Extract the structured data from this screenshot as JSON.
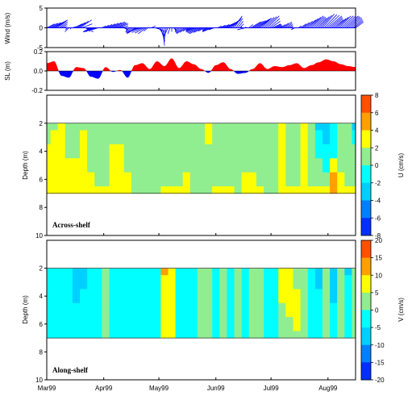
{
  "chart_data": [
    {
      "type": "line",
      "subtype": "stick-vector",
      "ylabel": "Wind (m/s)",
      "ylim": [
        -5,
        5
      ],
      "yticks": [
        -5,
        0,
        5
      ],
      "color": "#0000ff",
      "x_start": "1999-03-01",
      "days": [
        0,
        3,
        6,
        9,
        12,
        15,
        18,
        21,
        24,
        27,
        30,
        33,
        36,
        39,
        42,
        45,
        48,
        51,
        54,
        57,
        60,
        63,
        66,
        69,
        72,
        75,
        78,
        81,
        84,
        87,
        90,
        93,
        96,
        99,
        102,
        105,
        108,
        111,
        114,
        117,
        120,
        123,
        126,
        129,
        132,
        135,
        138,
        141,
        144,
        147,
        150,
        153,
        156,
        159,
        162,
        165,
        168
      ],
      "u": [
        2,
        3,
        2.5,
        1,
        -1,
        2,
        3,
        2,
        -2,
        -3,
        1,
        2,
        3,
        2.5,
        1,
        -1,
        -2,
        -3,
        -2,
        1,
        2,
        0.5,
        -1,
        0.5,
        -1,
        -2,
        -1,
        -2.5,
        -3,
        -1,
        -2.5,
        1,
        2.5,
        3,
        2,
        1,
        -2,
        2.5,
        3,
        2.5,
        3,
        2,
        1,
        2,
        1,
        -1,
        1.5,
        2.5,
        3,
        2.5,
        3,
        3.5,
        2.5,
        3,
        3.5,
        3,
        2
      ],
      "v": [
        1,
        1.5,
        2,
        0.5,
        -1,
        1,
        2,
        -1,
        -1,
        -1,
        0.5,
        1,
        1.5,
        1,
        -0.5,
        -1,
        -1.5,
        -1,
        -1.5,
        0.5,
        -1,
        -4.5,
        -2,
        -0.5,
        -1,
        -1.5,
        -0.5,
        -1,
        -1.5,
        -0.5,
        -1,
        0.5,
        1,
        2,
        3,
        1,
        -0.5,
        1.5,
        2,
        2.5,
        3,
        1,
        0.5,
        1.5,
        0.5,
        -0.5,
        1,
        2,
        3,
        2.5,
        3.5,
        3,
        2,
        3,
        3,
        2.5,
        1.5
      ]
    },
    {
      "type": "area",
      "ylabel": "SL (m)",
      "ylim": [
        -0.2,
        0.2
      ],
      "yticks": [
        -0.2,
        0.0,
        0.2
      ],
      "positive_color": "#ff0000",
      "negative_color": "#0000ff",
      "x_start": "1999-03-01",
      "days": [
        0,
        4,
        8,
        12,
        16,
        20,
        24,
        28,
        32,
        36,
        40,
        44,
        48,
        52,
        56,
        60,
        64,
        68,
        72,
        76,
        80,
        84,
        88,
        92,
        96,
        100,
        104,
        108,
        112,
        116,
        120,
        124,
        128,
        132,
        136,
        140,
        144,
        148,
        152,
        156,
        160,
        164,
        168
      ],
      "values": [
        0.08,
        0.1,
        -0.05,
        -0.07,
        0.04,
        0.03,
        -0.06,
        -0.08,
        0.04,
        -0.01,
        0.01,
        -0.07,
        0.06,
        0.08,
        0.02,
        0.1,
        0.05,
        0.13,
        0.03,
        0.1,
        0.07,
        0.02,
        -0.02,
        0.06,
        0.09,
        0.02,
        -0.03,
        -0.02,
        0.02,
        0.08,
        0.02,
        0.05,
        0.04,
        0.06,
        0.08,
        0.03,
        0.06,
        0.09,
        0.12,
        0.1,
        0.07,
        0.05,
        0.04
      ]
    },
    {
      "type": "heatmap",
      "panel_label": "Across-shelf",
      "ylabel": "Depth (m)",
      "colorbar_label": "U (cm/s)",
      "ylim": [
        10,
        0
      ],
      "yticks": [
        2,
        4,
        6,
        8,
        10
      ],
      "colorbar_ticks": [
        -8,
        -6,
        -4,
        -2,
        0,
        2,
        4,
        6,
        8
      ],
      "levels": [
        -8,
        -6,
        -4,
        -2,
        0,
        2,
        4,
        6,
        8
      ],
      "level_colors": [
        "#00008f",
        "#0000df",
        "#0030ff",
        "#0080ff",
        "#00d0ff",
        "#00ffff",
        "#90ee90",
        "#ffff00",
        "#ffa000",
        "#ff5000",
        "#ff0000"
      ],
      "depths": [
        2,
        3,
        4,
        5,
        6,
        7
      ],
      "x_start": "1999-03-01",
      "days": [
        0,
        4,
        8,
        12,
        16,
        20,
        24,
        28,
        32,
        36,
        40,
        44,
        48,
        52,
        56,
        60,
        64,
        68,
        72,
        76,
        80,
        84,
        88,
        92,
        96,
        100,
        104,
        108,
        112,
        116,
        120,
        124,
        128,
        132,
        136,
        140,
        144,
        148,
        152,
        156,
        160,
        164,
        168
      ],
      "values": [
        [
          0.5,
          1,
          2.5,
          0.5,
          1,
          0.5,
          0.5,
          0.5,
          0.5,
          0.5,
          1,
          0.5,
          0.5,
          0.5,
          0.5,
          0.5,
          0.5,
          0.5,
          0.5,
          0.5,
          0.5,
          0.5,
          2.5,
          0.5,
          0.5,
          0.5,
          0.5,
          1,
          1,
          0.5,
          0.5,
          0.5,
          2.5,
          0.5,
          0.5,
          2.5,
          0.5,
          -3,
          -2.5,
          -1,
          0.5,
          0.5,
          -3
        ],
        [
          0.5,
          2.5,
          2.5,
          0.5,
          1,
          2.5,
          0.5,
          0.5,
          0.5,
          0.5,
          1,
          0.5,
          0.5,
          0.5,
          0.5,
          0.5,
          0.5,
          0.5,
          0.5,
          0.5,
          0.5,
          0.5,
          2.5,
          0.5,
          0.5,
          0.5,
          0.5,
          1,
          1,
          0.5,
          0.5,
          0.5,
          2.5,
          0.5,
          0.5,
          2.5,
          0.5,
          -1,
          -3,
          -1,
          0.5,
          0.5,
          -1
        ],
        [
          2.5,
          2.5,
          2.5,
          1,
          1,
          2.5,
          0.5,
          0.5,
          0.5,
          2.5,
          2.5,
          0.5,
          0.5,
          0.5,
          0.5,
          0.5,
          0.5,
          0.5,
          0.5,
          0.5,
          0.5,
          0.5,
          1,
          0.5,
          0.5,
          0.5,
          0.5,
          1,
          1,
          0.5,
          0.5,
          0.5,
          2.5,
          0.5,
          0.5,
          2.5,
          0.5,
          -1,
          -1,
          -1,
          0.5,
          0.5,
          0.5
        ],
        [
          2.5,
          2.5,
          2.5,
          2.5,
          2.5,
          2.5,
          0.5,
          0.5,
          0.5,
          2.5,
          2.5,
          0.5,
          0.5,
          0.5,
          0.5,
          0.5,
          0.5,
          0.5,
          0.5,
          0.5,
          0.5,
          0.5,
          1,
          0.5,
          0.5,
          0.5,
          0.5,
          1,
          1,
          0.5,
          0.5,
          0.5,
          2.5,
          0.5,
          0.5,
          2.5,
          0.5,
          0.5,
          -1,
          2.5,
          0.5,
          0.5,
          0.5
        ],
        [
          2.5,
          2.5,
          2.5,
          2.5,
          2.5,
          2.5,
          2.5,
          0.5,
          0.5,
          2.5,
          2.5,
          2.5,
          0.5,
          0.5,
          0.5,
          0.5,
          0.5,
          0.5,
          0.5,
          2.5,
          0.5,
          0.5,
          1,
          0.5,
          0.5,
          0.5,
          0.5,
          2.5,
          2.5,
          0.5,
          0.5,
          0.5,
          2.5,
          0.5,
          0.5,
          2.5,
          0.5,
          0.5,
          0.5,
          5,
          2.5,
          0.5,
          0.5
        ],
        [
          2.5,
          2.5,
          2.5,
          2.5,
          2.5,
          2.5,
          2.5,
          2.5,
          2.5,
          2.5,
          2.5,
          2.5,
          0.5,
          0.5,
          0.5,
          0.5,
          2.5,
          2.5,
          2.5,
          2.5,
          0.5,
          0.5,
          1,
          2.5,
          2.5,
          2.5,
          0.5,
          2.5,
          2.5,
          2.5,
          0.5,
          0.5,
          2.5,
          2.5,
          2.5,
          2.5,
          2.5,
          2.5,
          2.5,
          5,
          2.5,
          2.5,
          2.5
        ]
      ]
    },
    {
      "type": "heatmap",
      "panel_label": "Along-shelf",
      "ylabel": "Depth (m)",
      "colorbar_label": "V (cm/s)",
      "ylim": [
        10,
        0
      ],
      "yticks": [
        2,
        4,
        6,
        8,
        10
      ],
      "colorbar_ticks": [
        -20,
        -15,
        -10,
        -5,
        0,
        5,
        10,
        15,
        20
      ],
      "levels": [
        -20,
        -15,
        -10,
        -5,
        0,
        5,
        10,
        15,
        20
      ],
      "level_colors": [
        "#00008f",
        "#0000df",
        "#0030ff",
        "#0080ff",
        "#00d0ff",
        "#00ffff",
        "#90ee90",
        "#ffff00",
        "#ffa000",
        "#ff5000",
        "#ff0000"
      ],
      "depths": [
        2,
        3,
        4,
        5,
        6,
        7
      ],
      "x_start": "1999-03-01",
      "days": [
        0,
        4,
        8,
        12,
        16,
        20,
        24,
        28,
        32,
        36,
        40,
        44,
        48,
        52,
        56,
        60,
        64,
        68,
        72,
        76,
        80,
        84,
        88,
        92,
        96,
        100,
        104,
        108,
        112,
        116,
        120,
        124,
        128,
        132,
        136,
        140,
        144,
        148,
        152,
        156,
        160,
        164,
        168
      ],
      "values": [
        [
          -2,
          -2,
          -2,
          -2,
          -7,
          -7,
          -2,
          -2,
          2.5,
          -2,
          -2,
          -2,
          -2,
          -2,
          -2,
          -2,
          12,
          7,
          -2,
          -2,
          -2,
          2.5,
          2.5,
          -2,
          2.5,
          -2,
          2.5,
          -2,
          2.5,
          2.5,
          -2,
          -2,
          7,
          7,
          2.5,
          2.5,
          -2,
          -7,
          2.5,
          -7,
          2.5,
          -7,
          2.5
        ],
        [
          -2,
          -2,
          -2,
          -2,
          -7,
          -7,
          -2,
          -2,
          2.5,
          -2,
          -2,
          -2,
          -2,
          -2,
          -2,
          -2,
          7,
          7,
          -2,
          -2,
          -2,
          2.5,
          2.5,
          -2,
          2.5,
          -2,
          2.5,
          -2,
          2.5,
          2.5,
          -2,
          -2,
          7,
          7,
          2.5,
          2.5,
          -2,
          -7,
          2.5,
          -7,
          2.5,
          -2,
          2.5
        ],
        [
          -2,
          -2,
          -2,
          -2,
          -7,
          -2,
          -2,
          -2,
          2.5,
          -2,
          -2,
          -2,
          -2,
          -2,
          -2,
          -2,
          7,
          7,
          -2,
          -2,
          -2,
          2.5,
          2.5,
          -2,
          2.5,
          -2,
          2.5,
          -2,
          2.5,
          2.5,
          -2,
          -2,
          7,
          7,
          7,
          2.5,
          -2,
          -2,
          2.5,
          -7,
          2.5,
          -2,
          2.5
        ],
        [
          -2,
          -2,
          -2,
          -2,
          -2,
          -2,
          -2,
          -2,
          2.5,
          -2,
          -2,
          -2,
          -2,
          -2,
          -2,
          -2,
          7,
          7,
          -2,
          -2,
          -2,
          2.5,
          2.5,
          -2,
          2.5,
          -2,
          2.5,
          -2,
          2.5,
          2.5,
          -2,
          -2,
          2.5,
          7,
          7,
          2.5,
          -2,
          -2,
          2.5,
          -2,
          2.5,
          -2,
          2.5
        ],
        [
          -2,
          -2,
          -2,
          -2,
          -2,
          -2,
          -2,
          -2,
          2.5,
          -2,
          -2,
          -2,
          -2,
          -2,
          -2,
          -2,
          7,
          7,
          -2,
          -2,
          -2,
          2.5,
          2.5,
          -2,
          2.5,
          -2,
          2.5,
          -2,
          2.5,
          2.5,
          -2,
          -2,
          2.5,
          2.5,
          7,
          2.5,
          -2,
          -2,
          2.5,
          -2,
          2.5,
          -2,
          2.5
        ],
        [
          -2,
          -2,
          -2,
          -2,
          -2,
          -2,
          -2,
          -2,
          2.5,
          -2,
          -2,
          -2,
          -2,
          -2,
          -2,
          -2,
          7,
          7,
          -2,
          -2,
          -2,
          2.5,
          2.5,
          -2,
          2.5,
          -2,
          2.5,
          -2,
          2.5,
          2.5,
          -2,
          -2,
          2.5,
          2.5,
          2.5,
          2.5,
          -2,
          -2,
          2.5,
          -2,
          2.5,
          -2,
          2.5
        ]
      ]
    }
  ],
  "time_axis": {
    "tick_labels": [
      "Mar99",
      "Apr99",
      "May99",
      "Jun99",
      "Jul99",
      "Aug99"
    ],
    "tick_days": [
      0,
      31,
      61,
      92,
      122,
      153
    ],
    "range_days": [
      0,
      168
    ]
  },
  "colors": {
    "axis": "#000000",
    "grid_tick": "#000000"
  }
}
